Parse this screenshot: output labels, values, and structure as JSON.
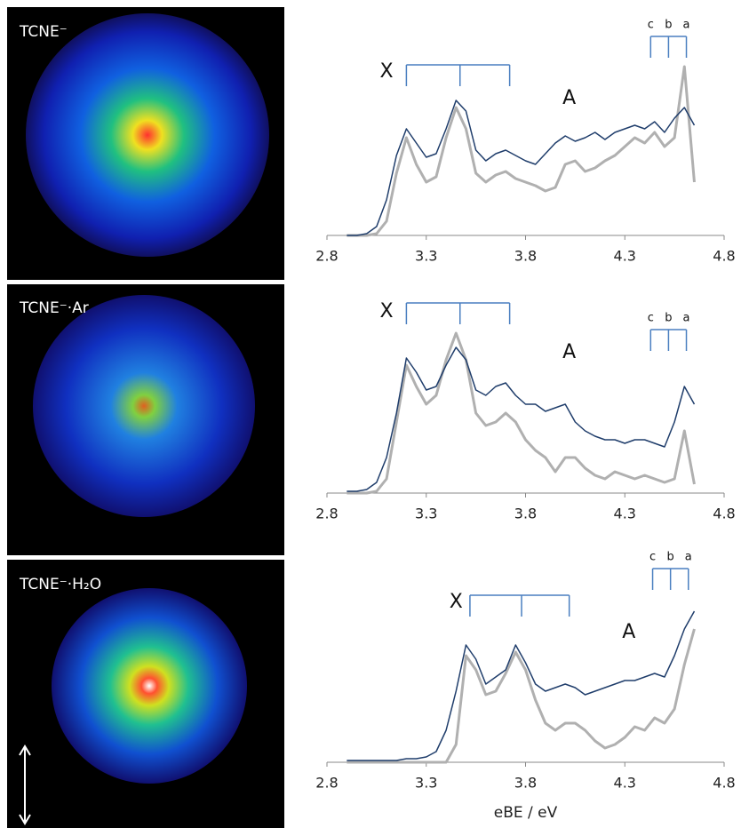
{
  "images": [
    {
      "label": "TCNE⁻"
    },
    {
      "label": "TCNE⁻·Ar"
    },
    {
      "label": "TCNE⁻·H₂O"
    }
  ],
  "chart_data": [
    {
      "type": "line",
      "xlim": [
        2.8,
        4.8
      ],
      "xticks": [
        2.8,
        3.3,
        3.8,
        4.3,
        4.8
      ],
      "ylim": [
        0,
        1.2
      ],
      "x": [
        2.9,
        2.95,
        3.0,
        3.05,
        3.1,
        3.15,
        3.2,
        3.25,
        3.3,
        3.35,
        3.4,
        3.45,
        3.5,
        3.55,
        3.6,
        3.65,
        3.7,
        3.75,
        3.8,
        3.85,
        3.9,
        3.95,
        4.0,
        4.05,
        4.1,
        4.15,
        4.2,
        4.25,
        4.3,
        4.35,
        4.4,
        4.45,
        4.5,
        4.55,
        4.6,
        4.65
      ],
      "series": [
        {
          "color": "#1f3d6b",
          "values": [
            0,
            0,
            0.01,
            0.05,
            0.2,
            0.45,
            0.6,
            0.52,
            0.44,
            0.46,
            0.6,
            0.76,
            0.7,
            0.48,
            0.42,
            0.46,
            0.48,
            0.45,
            0.42,
            0.4,
            0.46,
            0.52,
            0.56,
            0.53,
            0.55,
            0.58,
            0.54,
            0.58,
            0.6,
            0.62,
            0.6,
            0.64,
            0.58,
            0.66,
            0.72,
            0.62
          ]
        },
        {
          "color": "#b0b0b0",
          "values": [
            0,
            0,
            0,
            0.01,
            0.08,
            0.35,
            0.55,
            0.4,
            0.3,
            0.33,
            0.55,
            0.72,
            0.6,
            0.35,
            0.3,
            0.34,
            0.36,
            0.32,
            0.3,
            0.28,
            0.25,
            0.27,
            0.4,
            0.42,
            0.36,
            0.38,
            0.42,
            0.45,
            0.5,
            0.55,
            0.52,
            0.58,
            0.5,
            0.55,
            0.95,
            0.3
          ]
        }
      ],
      "annotations": [
        {
          "text": "X",
          "x": 3.1,
          "y": 0.92
        },
        {
          "text": "A",
          "x": 4.02,
          "y": 0.77
        }
      ],
      "combs": [
        {
          "y": 0.96,
          "x": [
            3.2,
            3.47,
            3.72
          ]
        },
        {
          "y": 1.12,
          "x": [
            4.43,
            4.52,
            4.61
          ],
          "labels": [
            "c",
            "b",
            "a"
          ]
        }
      ]
    },
    {
      "type": "line",
      "xlim": [
        2.8,
        4.8
      ],
      "xticks": [
        2.8,
        3.3,
        3.8,
        4.3,
        4.8
      ],
      "ylim": [
        0,
        1.2
      ],
      "x": [
        2.9,
        2.95,
        3.0,
        3.05,
        3.1,
        3.15,
        3.2,
        3.25,
        3.3,
        3.35,
        3.4,
        3.45,
        3.5,
        3.55,
        3.6,
        3.65,
        3.7,
        3.75,
        3.8,
        3.85,
        3.9,
        3.95,
        4.0,
        4.05,
        4.1,
        4.15,
        4.2,
        4.25,
        4.3,
        4.35,
        4.4,
        4.45,
        4.5,
        4.55,
        4.6,
        4.65
      ],
      "series": [
        {
          "color": "#1f3d6b",
          "values": [
            0.01,
            0.01,
            0.02,
            0.06,
            0.2,
            0.45,
            0.76,
            0.68,
            0.58,
            0.6,
            0.72,
            0.82,
            0.75,
            0.58,
            0.55,
            0.6,
            0.62,
            0.55,
            0.5,
            0.5,
            0.46,
            0.48,
            0.5,
            0.4,
            0.35,
            0.32,
            0.3,
            0.3,
            0.28,
            0.3,
            0.3,
            0.28,
            0.26,
            0.4,
            0.6,
            0.5
          ]
        },
        {
          "color": "#b0b0b0",
          "values": [
            0,
            0,
            0,
            0.01,
            0.08,
            0.4,
            0.72,
            0.6,
            0.5,
            0.55,
            0.75,
            0.9,
            0.75,
            0.45,
            0.38,
            0.4,
            0.45,
            0.4,
            0.3,
            0.24,
            0.2,
            0.12,
            0.2,
            0.2,
            0.14,
            0.1,
            0.08,
            0.12,
            0.1,
            0.08,
            0.1,
            0.08,
            0.06,
            0.08,
            0.35,
            0.05
          ]
        }
      ],
      "annotations": [
        {
          "text": "X",
          "x": 3.1,
          "y": 1.02
        },
        {
          "text": "A",
          "x": 4.02,
          "y": 0.79
        }
      ],
      "combs": [
        {
          "y": 1.07,
          "x": [
            3.2,
            3.47,
            3.72
          ]
        },
        {
          "y": 0.92,
          "x": [
            4.43,
            4.52,
            4.61
          ],
          "labels": [
            "c",
            "b",
            "a"
          ]
        }
      ]
    },
    {
      "type": "line",
      "xlim": [
        2.8,
        4.8
      ],
      "xticks": [
        2.8,
        3.3,
        3.8,
        4.3,
        4.8
      ],
      "ylim": [
        0,
        1.2
      ],
      "xlabel": "eBE / eV",
      "x": [
        2.9,
        2.95,
        3.0,
        3.05,
        3.1,
        3.15,
        3.2,
        3.25,
        3.3,
        3.35,
        3.4,
        3.45,
        3.5,
        3.55,
        3.6,
        3.65,
        3.7,
        3.75,
        3.8,
        3.85,
        3.9,
        3.95,
        4.0,
        4.05,
        4.1,
        4.15,
        4.2,
        4.25,
        4.3,
        4.35,
        4.4,
        4.45,
        4.5,
        4.55,
        4.6,
        4.65
      ],
      "series": [
        {
          "color": "#1f3d6b",
          "values": [
            0.01,
            0.01,
            0.01,
            0.01,
            0.01,
            0.01,
            0.02,
            0.02,
            0.03,
            0.06,
            0.18,
            0.4,
            0.66,
            0.58,
            0.44,
            0.48,
            0.52,
            0.66,
            0.56,
            0.44,
            0.4,
            0.42,
            0.44,
            0.42,
            0.38,
            0.4,
            0.42,
            0.44,
            0.46,
            0.46,
            0.48,
            0.5,
            0.48,
            0.6,
            0.75,
            0.85
          ]
        },
        {
          "color": "#b0b0b0",
          "values": [
            0,
            0,
            0,
            0,
            0,
            0,
            0,
            0,
            0,
            0,
            0,
            0.1,
            0.6,
            0.52,
            0.38,
            0.4,
            0.5,
            0.62,
            0.52,
            0.35,
            0.22,
            0.18,
            0.22,
            0.22,
            0.18,
            0.12,
            0.08,
            0.1,
            0.14,
            0.2,
            0.18,
            0.25,
            0.22,
            0.3,
            0.55,
            0.75
          ]
        }
      ],
      "annotations": [
        {
          "text": "X",
          "x": 3.45,
          "y": 0.9
        },
        {
          "text": "A",
          "x": 4.32,
          "y": 0.73
        }
      ],
      "combs": [
        {
          "y": 0.94,
          "x": [
            3.52,
            3.78,
            4.02
          ]
        },
        {
          "y": 1.09,
          "x": [
            4.44,
            4.53,
            4.62
          ],
          "labels": [
            "c",
            "b",
            "a"
          ]
        }
      ]
    }
  ]
}
